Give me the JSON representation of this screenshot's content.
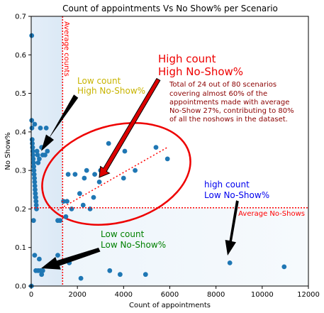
{
  "chart_data": {
    "type": "scatter",
    "title": "Count of appointments Vs No Show% per Scenario",
    "xlabel": "Count of appointments",
    "ylabel": "No Show%",
    "xlim": [
      0,
      12000
    ],
    "ylim": [
      0,
      0.7
    ],
    "x_ticks": [
      "0",
      "2000",
      "4000",
      "6000",
      "8000",
      "10000",
      "12000"
    ],
    "y_ticks": [
      "0.0",
      "0.1",
      "0.2",
      "0.3",
      "0.4",
      "0.5",
      "0.6",
      "0.7"
    ],
    "average_count": 1360,
    "average_noshow": 0.203,
    "average_count_label": "Average counts",
    "average_noshow_label": "Average No-Shows",
    "colors": {
      "points": "#1f77b4",
      "average_lines": "#ff0000",
      "quadrant_shade": "#dbe9f6",
      "trend": "#ff0000",
      "ellipse": "#ee0000"
    },
    "points": [
      [
        20,
        0.65
      ],
      [
        20,
        0.43
      ],
      [
        30,
        0.41
      ],
      [
        40,
        0.38
      ],
      [
        50,
        0.37
      ],
      [
        60,
        0.36
      ],
      [
        70,
        0.35
      ],
      [
        80,
        0.34
      ],
      [
        90,
        0.33
      ],
      [
        100,
        0.32
      ],
      [
        110,
        0.31
      ],
      [
        120,
        0.3
      ],
      [
        130,
        0.29
      ],
      [
        140,
        0.28
      ],
      [
        150,
        0.27
      ],
      [
        160,
        0.26
      ],
      [
        170,
        0.25
      ],
      [
        180,
        0.24
      ],
      [
        190,
        0.23
      ],
      [
        200,
        0.23
      ],
      [
        210,
        0.22
      ],
      [
        220,
        0.21
      ],
      [
        230,
        0.2
      ],
      [
        150,
        0.42
      ],
      [
        250,
        0.35
      ],
      [
        280,
        0.34
      ],
      [
        300,
        0.32
      ],
      [
        350,
        0.33
      ],
      [
        400,
        0.41
      ],
      [
        450,
        0.36
      ],
      [
        500,
        0.34
      ],
      [
        600,
        0.34
      ],
      [
        650,
        0.41
      ],
      [
        700,
        0.35
      ],
      [
        800,
        0.38
      ],
      [
        100,
        0.17
      ],
      [
        150,
        0.08
      ],
      [
        200,
        0.04
      ],
      [
        300,
        0.04
      ],
      [
        400,
        0.04
      ],
      [
        350,
        0.07
      ],
      [
        450,
        0.03
      ],
      [
        500,
        0.04
      ],
      [
        10,
        0.0
      ],
      [
        1150,
        0.17
      ],
      [
        1250,
        0.17
      ],
      [
        1400,
        0.22
      ],
      [
        1550,
        0.22
      ],
      [
        1600,
        0.29
      ],
      [
        1650,
        0.06
      ],
      [
        1750,
        0.2
      ],
      [
        1900,
        0.29
      ],
      [
        2100,
        0.24
      ],
      [
        2250,
        0.21
      ],
      [
        2300,
        0.28
      ],
      [
        2400,
        0.3
      ],
      [
        2550,
        0.2
      ],
      [
        2700,
        0.23
      ],
      [
        2750,
        0.29
      ],
      [
        2950,
        0.27
      ],
      [
        3000,
        0.3
      ],
      [
        3350,
        0.37
      ],
      [
        4000,
        0.28
      ],
      [
        4050,
        0.35
      ],
      [
        4500,
        0.3
      ],
      [
        5400,
        0.36
      ],
      [
        5900,
        0.33
      ],
      [
        3400,
        0.04
      ],
      [
        3850,
        0.03
      ],
      [
        4950,
        0.03
      ],
      [
        2150,
        0.02
      ],
      [
        1150,
        0.08
      ],
      [
        1500,
        0.18
      ],
      [
        8600,
        0.06
      ],
      [
        10950,
        0.05
      ]
    ],
    "trend": [
      [
        1150,
        0.197
      ],
      [
        5900,
        0.36
      ]
    ],
    "annotations": {
      "high_high_title": [
        "High count",
        "High No-Show%"
      ],
      "high_high_note": [
        "Total of 24 out of 80 scenarios",
        "covering almost 60% of the",
        "appointments made with average",
        "No-Show 27%, contributing to 80%",
        "of all the noshows in the dataset."
      ],
      "low_high": [
        "Low count",
        "High No-Show%"
      ],
      "high_low": [
        "high count",
        "Low No-Show%"
      ],
      "low_low": [
        "Low count",
        "Low No-Show%"
      ]
    }
  }
}
